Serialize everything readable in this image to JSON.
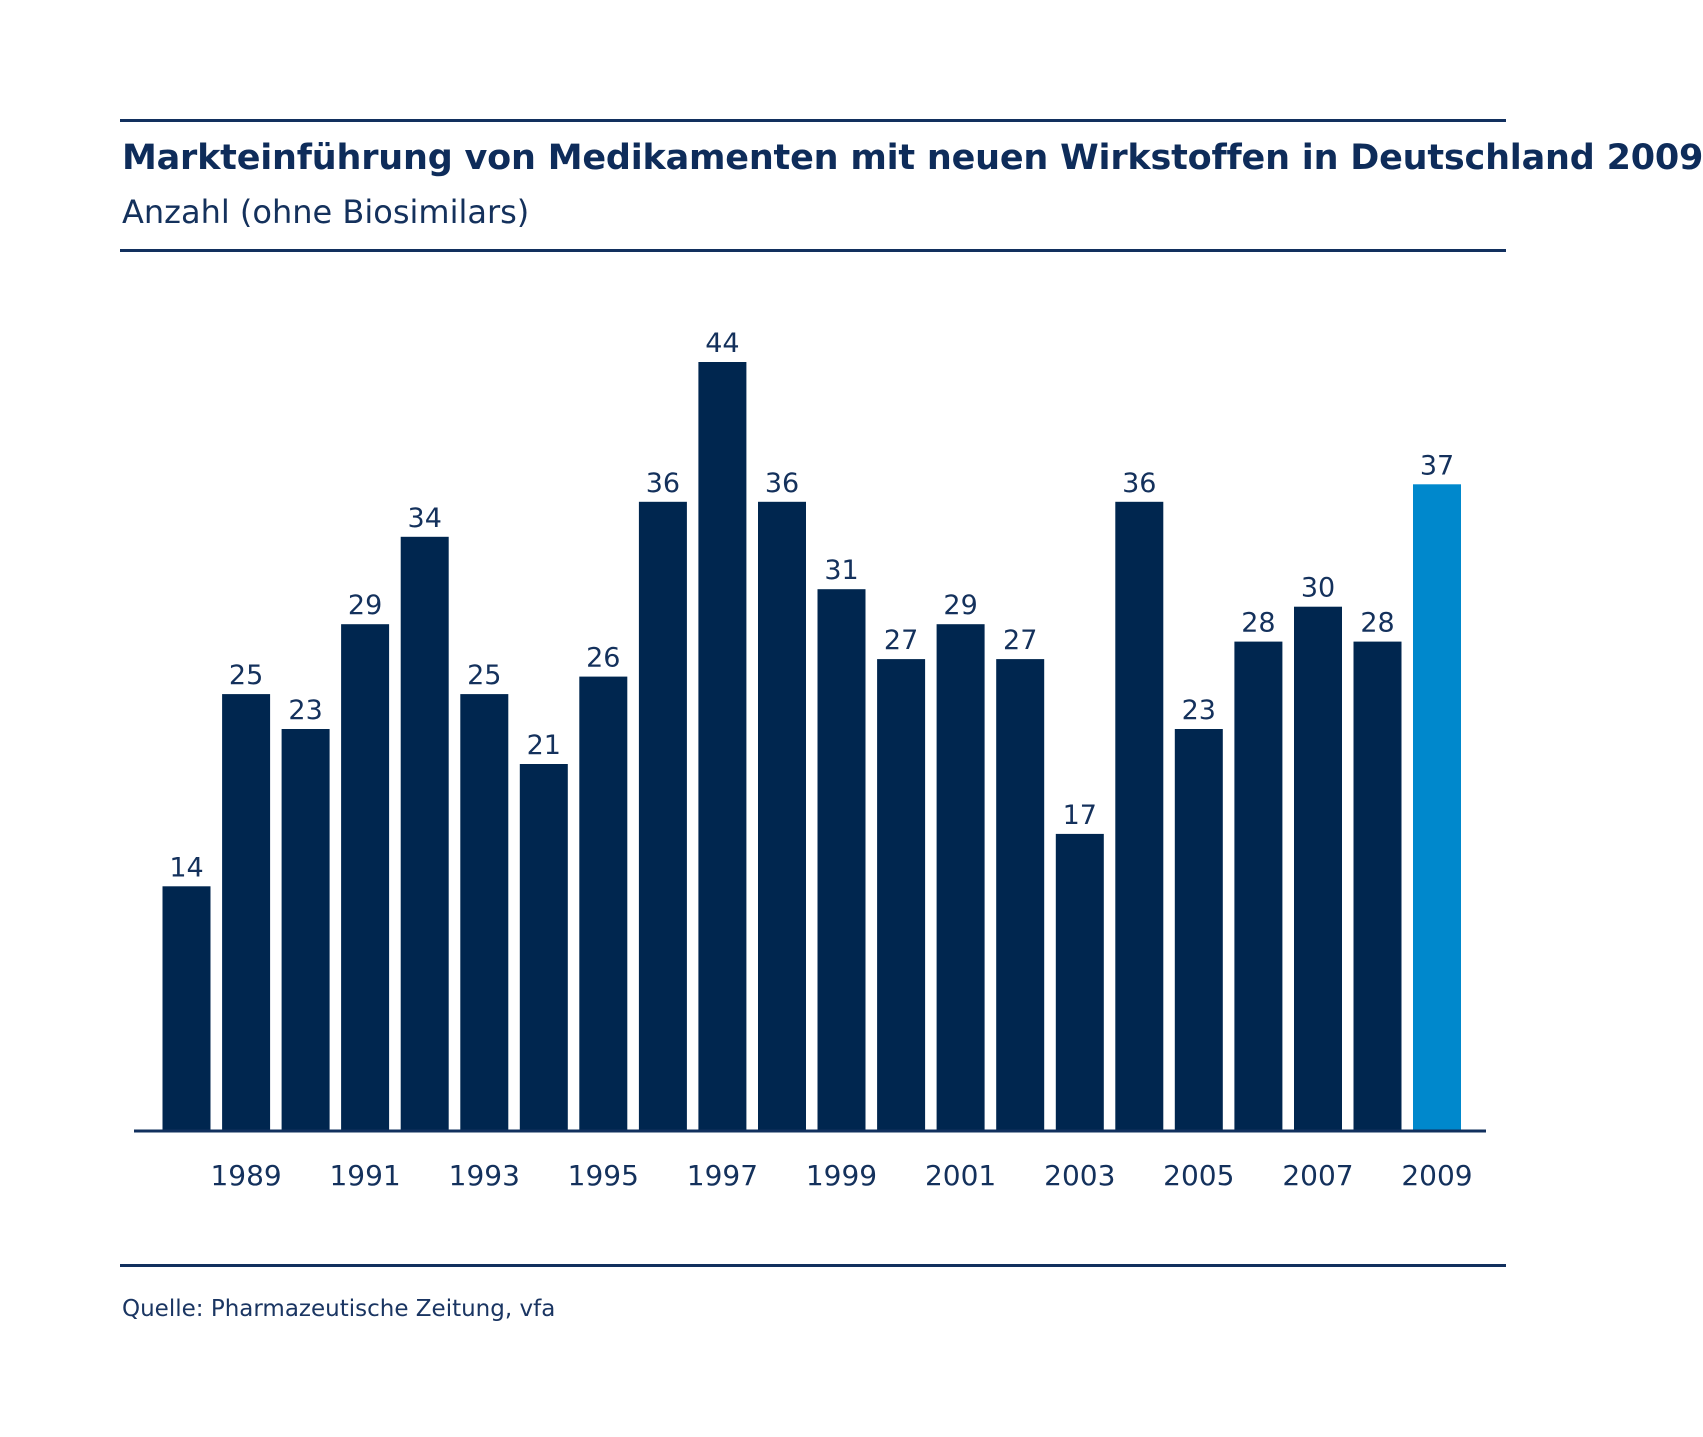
{
  "header": {
    "title": "Markteinführung von Medikamenten mit neuen Wirkstoffen in Deutschland 2009",
    "subtitle": "Anzahl (ohne Biosimilars)"
  },
  "footer": {
    "source": "Quelle: Pharmazeutische Zeitung, vfa"
  },
  "colors": {
    "bar": "#00264f",
    "highlight": "#0088cc",
    "axis": "#12305e"
  },
  "chart_data": {
    "type": "bar",
    "title": "Markteinführung von Medikamenten mit neuen Wirkstoffen in Deutschland 2009",
    "subtitle": "Anzahl (ohne Biosimilars)",
    "categories": [
      1988,
      1989,
      1990,
      1991,
      1992,
      1993,
      1994,
      1995,
      1996,
      1997,
      1998,
      1999,
      2000,
      2001,
      2002,
      2003,
      2004,
      2005,
      2006,
      2007,
      2008,
      2009
    ],
    "values": [
      14,
      25,
      23,
      29,
      34,
      25,
      21,
      26,
      36,
      44,
      36,
      31,
      27,
      29,
      27,
      17,
      36,
      23,
      28,
      30,
      28,
      37
    ],
    "tick_labels": [
      "1989",
      "1991",
      "1993",
      "1995",
      "1997",
      "1999",
      "2001",
      "2003",
      "2005",
      "2007",
      "2009"
    ],
    "highlight_category": 2009,
    "ylim": [
      0,
      44
    ],
    "grid": false,
    "data_labels": true
  }
}
